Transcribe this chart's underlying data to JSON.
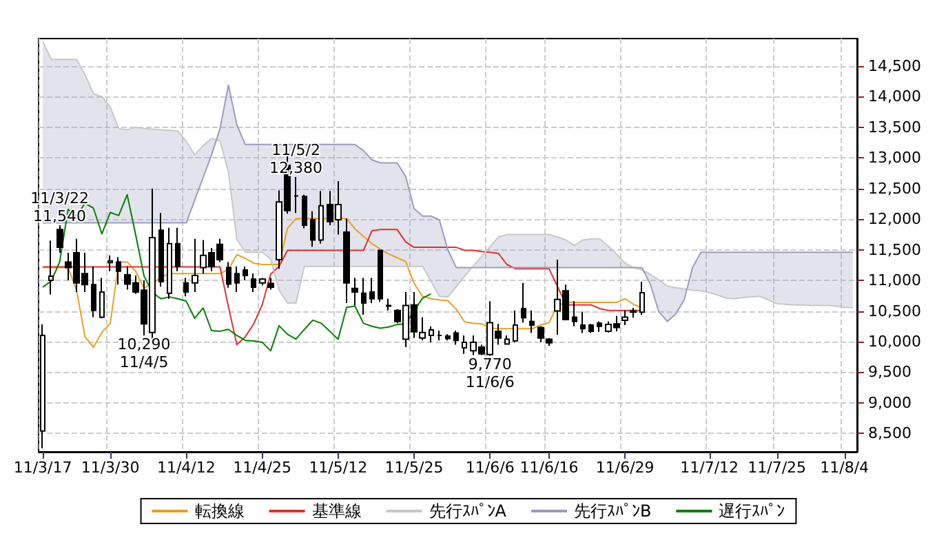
{
  "chart_data": {
    "type": "line",
    "categories": [
      "11/3/17",
      null,
      null,
      null,
      null,
      null,
      null,
      null,
      "11/3/30",
      null,
      null,
      null,
      null,
      null,
      null,
      null,
      null,
      "11/4/12",
      null,
      null,
      null,
      null,
      null,
      null,
      null,
      null,
      "11/4/25",
      null,
      null,
      null,
      null,
      null,
      null,
      null,
      null,
      "11/5/12",
      null,
      null,
      null,
      null,
      null,
      null,
      null,
      null,
      "11/5/25",
      null,
      null,
      null,
      null,
      null,
      null,
      null,
      null,
      "11/6/6",
      null,
      null,
      null,
      null,
      null,
      null,
      "11/6/16",
      null,
      null,
      null,
      null,
      null,
      null,
      null,
      null,
      "11/6/29",
      null,
      null,
      null,
      null,
      null,
      null,
      null,
      null,
      null,
      "11/7/12",
      null,
      null,
      null,
      null,
      null,
      null,
      null,
      "11/7/25",
      null,
      null,
      null,
      null,
      null,
      null,
      null,
      "11/8/4",
      null
    ],
    "series": [
      {
        "type": "candlestick",
        "color": "#000000",
        "ohlc": [
          [
            8540,
            10280,
            8260,
            10100
          ],
          [
            11000,
            11650,
            10770,
            11070
          ],
          [
            11830,
            11900,
            11450,
            11540
          ],
          [
            11300,
            11450,
            11000,
            11210
          ],
          [
            11450,
            11680,
            10810,
            10960
          ],
          [
            11110,
            11450,
            10810,
            10930
          ],
          [
            10930,
            11230,
            10400,
            10510
          ],
          [
            10400,
            11040,
            10380,
            10810
          ],
          [
            11290,
            11410,
            11150,
            11320
          ],
          [
            11300,
            11380,
            10930,
            11150
          ],
          [
            11090,
            11230,
            10850,
            10940
          ],
          [
            10960,
            11080,
            10780,
            10810
          ],
          [
            10840,
            11000,
            10100,
            10290
          ],
          [
            10150,
            12500,
            9950,
            11700
          ],
          [
            11820,
            12100,
            10900,
            10980
          ],
          [
            10790,
            11860,
            10700,
            11600
          ],
          [
            11600,
            11860,
            11150,
            11230
          ],
          [
            10960,
            11040,
            10740,
            10810
          ],
          [
            10960,
            11680,
            10810,
            11080
          ],
          [
            11210,
            11660,
            11110,
            11410
          ],
          [
            11450,
            11530,
            11150,
            11230
          ],
          [
            11590,
            11680,
            11300,
            11340
          ],
          [
            11210,
            11300,
            10880,
            10940
          ],
          [
            11110,
            11230,
            10810,
            10960
          ],
          [
            11170,
            11230,
            11000,
            11080
          ],
          [
            11020,
            11110,
            10810,
            10890
          ],
          [
            10960,
            11040,
            10920,
            11020
          ],
          [
            10950,
            11040,
            10850,
            10890
          ],
          [
            11340,
            12470,
            11190,
            12280
          ],
          [
            12880,
            13160,
            12090,
            12140
          ],
          [
            12380,
            12690,
            12100,
            12380
          ],
          [
            12370,
            12400,
            11850,
            11900
          ],
          [
            11990,
            12130,
            11550,
            11660
          ],
          [
            11660,
            12460,
            11600,
            12220
          ],
          [
            12240,
            12460,
            11900,
            11960
          ],
          [
            11990,
            12620,
            11750,
            12240
          ],
          [
            11790,
            12010,
            10630,
            10960
          ],
          [
            10870,
            11040,
            10590,
            10810
          ],
          [
            10790,
            11040,
            10440,
            10630
          ],
          [
            10810,
            11040,
            10630,
            10700
          ],
          [
            11490,
            11500,
            10650,
            10700
          ],
          [
            10580,
            10700,
            10510,
            10590
          ],
          [
            10510,
            10530,
            10300,
            10330
          ],
          [
            10040,
            10810,
            9910,
            10590
          ],
          [
            10600,
            10810,
            10060,
            10160
          ],
          [
            10060,
            10400,
            10020,
            10150
          ],
          [
            10100,
            10250,
            9990,
            10190
          ],
          [
            10100,
            10180,
            10020,
            10100
          ],
          [
            10090,
            10120,
            10020,
            10050
          ],
          [
            10140,
            10180,
            9950,
            10020
          ],
          [
            9900,
            10100,
            9800,
            9990
          ],
          [
            9850,
            10100,
            9780,
            9990
          ],
          [
            9910,
            9950,
            9780,
            9800
          ],
          [
            9790,
            10660,
            9770,
            10310
          ],
          [
            10170,
            10290,
            9950,
            10060
          ],
          [
            9960,
            10100,
            9950,
            10040
          ],
          [
            10010,
            10510,
            9990,
            10270
          ],
          [
            10540,
            10960,
            10310,
            10390
          ],
          [
            10330,
            10510,
            10140,
            10270
          ],
          [
            10230,
            10250,
            9990,
            10060
          ],
          [
            10040,
            10060,
            9930,
            9980
          ],
          [
            10500,
            11340,
            10110,
            10690
          ],
          [
            10830,
            10930,
            10350,
            10360
          ],
          [
            10400,
            10660,
            10250,
            10330
          ],
          [
            10270,
            10490,
            10140,
            10210
          ],
          [
            10270,
            10290,
            10140,
            10170
          ],
          [
            10300,
            10330,
            10160,
            10250
          ],
          [
            10170,
            10330,
            10150,
            10280
          ],
          [
            10290,
            10420,
            10170,
            10230
          ],
          [
            10350,
            10510,
            10270,
            10400
          ],
          [
            10500,
            10550,
            10390,
            10480
          ],
          [
            10480,
            10980,
            10440,
            10800
          ],
          null,
          null,
          null,
          null,
          null,
          null,
          null,
          null,
          null,
          null,
          null,
          null,
          null,
          null,
          null,
          null,
          null,
          null,
          null,
          null,
          null,
          null,
          null,
          null,
          null
        ]
      },
      {
        "name": "転換線",
        "color": "#e8a020",
        "values": [
          11210,
          11210,
          11210,
          11210,
          10840,
          10080,
          9910,
          10150,
          10300,
          11300,
          11300,
          11150,
          10870,
          10950,
          11050,
          11110,
          11110,
          11110,
          11110,
          11110,
          11110,
          11110,
          11180,
          11420,
          11360,
          11280,
          11260,
          11260,
          11260,
          11850,
          12010,
          12010,
          12010,
          12010,
          12010,
          12010,
          12010,
          11840,
          11720,
          11600,
          11510,
          11430,
          11370,
          11310,
          10950,
          10740,
          10700,
          10680,
          10670,
          10530,
          10320,
          10300,
          10290,
          10220,
          10210,
          10210,
          10210,
          10210,
          10210,
          10270,
          10310,
          10590,
          10640,
          10640,
          10640,
          10640,
          10640,
          10640,
          10640,
          10700,
          10610,
          10550,
          null,
          null,
          null,
          null,
          null,
          null,
          null,
          null,
          null,
          null,
          null,
          null,
          null,
          null,
          null,
          null,
          null,
          null,
          null,
          null,
          null,
          null,
          null,
          null,
          null
        ]
      },
      {
        "name": "基準線",
        "color": "#e03030",
        "values": [
          11220,
          11220,
          11220,
          11220,
          11220,
          11220,
          11220,
          11220,
          11220,
          11220,
          11220,
          11220,
          11220,
          11220,
          11220,
          11220,
          11220,
          11220,
          11220,
          11220,
          11220,
          11220,
          10570,
          9950,
          10080,
          10290,
          10600,
          11100,
          11230,
          11490,
          11490,
          11490,
          11490,
          11490,
          11490,
          11490,
          11490,
          11490,
          11490,
          11810,
          11830,
          11830,
          11830,
          11630,
          11540,
          11540,
          11540,
          11540,
          11540,
          11540,
          11490,
          11490,
          11470,
          11460,
          11440,
          11260,
          11190,
          11190,
          11190,
          11190,
          11190,
          10900,
          10600,
          10600,
          10600,
          10600,
          10540,
          10510,
          10510,
          10510,
          10510,
          10510,
          null,
          null,
          null,
          null,
          null,
          null,
          null,
          null,
          null,
          null,
          null,
          null,
          null,
          null,
          null,
          null,
          null,
          null,
          null,
          null,
          null,
          null,
          null,
          null,
          null
        ]
      },
      {
        "name": "先行ｽﾊﾟﾝA",
        "color": "#c8c8c8",
        "values": [
          14900,
          14610,
          14610,
          14610,
          14610,
          14360,
          14050,
          14000,
          13830,
          13480,
          13460,
          13500,
          13480,
          13470,
          13460,
          13450,
          13440,
          13270,
          13050,
          13200,
          13320,
          13280,
          12770,
          11670,
          11460,
          11460,
          11460,
          11350,
          10840,
          10630,
          10630,
          11230,
          11230,
          11230,
          11230,
          11230,
          11230,
          11230,
          11230,
          11230,
          11230,
          11230,
          11230,
          11230,
          11230,
          11230,
          10990,
          10740,
          10730,
          10900,
          11070,
          11230,
          11390,
          11550,
          11710,
          11750,
          11750,
          11750,
          11750,
          11750,
          11750,
          11710,
          11660,
          11570,
          11660,
          11680,
          11680,
          11560,
          11430,
          11280,
          11210,
          11170,
          11100,
          11010,
          10910,
          10880,
          10860,
          10840,
          10830,
          10800,
          10760,
          10710,
          10700,
          10720,
          10730,
          10740,
          10680,
          10620,
          10610,
          10600,
          10600,
          10590,
          10590,
          10590,
          10580,
          10560,
          10550
        ]
      },
      {
        "name": "先行ｽﾊﾟﾝB",
        "color": "#9c9cc0",
        "lower": [
          14900,
          14610,
          14610,
          14610,
          14610,
          14360,
          14050,
          14000,
          13830,
          13480,
          13460,
          13500,
          13480,
          13470,
          13460,
          13450,
          13440,
          13270,
          13050,
          13200,
          13320,
          13280,
          12770,
          11670,
          11460,
          11460,
          11460,
          11350,
          10840,
          10630,
          10630,
          11230,
          11230,
          11230,
          11230,
          11230,
          11230,
          11230,
          11230,
          11230,
          11230,
          11230,
          11230,
          11230,
          11230,
          11230,
          10990,
          10740,
          10730,
          10900,
          11070,
          11230,
          11390,
          11550,
          11710,
          11750,
          11750,
          11750,
          11750,
          11750,
          11750,
          11710,
          11660,
          11570,
          11660,
          11680,
          11680,
          11560,
          11430,
          11280,
          11210,
          11170,
          11100,
          11010,
          10910,
          10880,
          10860,
          10840,
          10830,
          10800,
          10760,
          10710,
          10700,
          10720,
          10730,
          10740,
          10680,
          10620,
          10610,
          10600,
          10600,
          10590,
          10590,
          10590,
          10580,
          10560,
          10550
        ],
        "upper": [
          11940,
          11940,
          11940,
          11940,
          11940,
          11940,
          11940,
          11940,
          11940,
          11940,
          11940,
          11940,
          11940,
          11940,
          11940,
          11940,
          11940,
          11940,
          12310,
          12680,
          13050,
          13480,
          14190,
          13540,
          13220,
          13220,
          13220,
          13220,
          13220,
          13220,
          13220,
          13220,
          13220,
          13220,
          13220,
          13220,
          13220,
          13220,
          13120,
          12970,
          12920,
          12920,
          12920,
          12700,
          12170,
          12050,
          12050,
          11990,
          11500,
          11210,
          11210,
          11210,
          11210,
          11210,
          11210,
          11210,
          11210,
          11210,
          11210,
          11210,
          11210,
          11210,
          11210,
          11210,
          11210,
          11210,
          11210,
          11210,
          11210,
          11210,
          11210,
          11210,
          10940,
          10490,
          10330,
          10450,
          10680,
          11210,
          11460,
          11460,
          11460,
          11460,
          11460,
          11460,
          11460,
          11460,
          11460,
          11460,
          11460,
          11460,
          11460,
          11460,
          11460,
          11460,
          11460,
          11460,
          11460
        ],
        "values": [
          11940,
          11940,
          11940,
          11940,
          11940,
          11940,
          11940,
          11940,
          11940,
          11940,
          11940,
          11940,
          11940,
          11940,
          11940,
          11940,
          11940,
          11940,
          12310,
          12680,
          13050,
          13480,
          14190,
          13540,
          13220,
          13220,
          13220,
          13220,
          13220,
          13220,
          13220,
          13220,
          13220,
          13220,
          13220,
          13220,
          13220,
          13220,
          13120,
          12970,
          12920,
          12920,
          12920,
          12700,
          12170,
          12050,
          12050,
          11990,
          11500,
          11210,
          11210,
          11210,
          11210,
          11210,
          11210,
          11210,
          11210,
          11210,
          11210,
          11210,
          11210,
          11210,
          11210,
          11210,
          11210,
          11210,
          11210,
          11210,
          11210,
          11210,
          11210,
          11210,
          10940,
          10490,
          10330,
          10450,
          10680,
          11210,
          11460,
          11460,
          11460,
          11460,
          11460,
          11460,
          11460,
          11460,
          11460,
          11460,
          11460,
          11460,
          11460,
          11460,
          11460,
          11460,
          11460,
          11460,
          11460
        ]
      },
      {
        "name": "遅行ｽﾊﾟﾝ",
        "color": "#008000",
        "values": [
          10890,
          10990,
          11300,
          12160,
          12050,
          12260,
          12180,
          11760,
          12110,
          12060,
          12400,
          11750,
          11070,
          10800,
          10700,
          10730,
          10700,
          10660,
          10380,
          10550,
          10180,
          10170,
          10200,
          10100,
          10020,
          10010,
          9990,
          9850,
          10260,
          10120,
          10040,
          10200,
          10350,
          10300,
          10170,
          10040,
          10560,
          10580,
          10300,
          10250,
          10220,
          10240,
          10280,
          10290,
          10500,
          10710,
          10780,
          null,
          null,
          null,
          null,
          null,
          null,
          null,
          null,
          null,
          null,
          null,
          null,
          null,
          null,
          null,
          null,
          null,
          null,
          null,
          null,
          null,
          null,
          null,
          null,
          null,
          null,
          null,
          null,
          null,
          null,
          null,
          null,
          null,
          null,
          null,
          null,
          null,
          null,
          null,
          null,
          null,
          null,
          null,
          null,
          null,
          null,
          null,
          null,
          null,
          null
        ]
      }
    ],
    "annotations": [
      {
        "text": "11/3/22",
        "y": 11540
      },
      {
        "text": "11,540",
        "y": 11540
      },
      {
        "text": "10,290",
        "y": 10290
      },
      {
        "text": "11/4/5",
        "y": 10290
      },
      {
        "text": "11/5/2",
        "y": 12380
      },
      {
        "text": "12,380",
        "y": 12380
      },
      {
        "text": "9,770",
        "y": 9770
      },
      {
        "text": "11/6/6",
        "y": 9770
      }
    ],
    "ylim": [
      8200,
      14950
    ],
    "yticks": [
      {
        "value": 8500,
        "label": "8,500"
      },
      {
        "value": 9000,
        "label": "9,000"
      },
      {
        "value": 9500,
        "label": "9,500"
      },
      {
        "value": 10000,
        "label": "10,000"
      },
      {
        "value": 10500,
        "label": "10,500"
      },
      {
        "value": 11000,
        "label": "11,000"
      },
      {
        "value": 11500,
        "label": "11,500"
      },
      {
        "value": 12000,
        "label": "12,000"
      },
      {
        "value": 12500,
        "label": "12,500"
      },
      {
        "value": 13000,
        "label": "13,000"
      },
      {
        "value": 13500,
        "label": "13,500"
      },
      {
        "value": 14000,
        "label": "14,000"
      },
      {
        "value": 14500,
        "label": "14,500"
      }
    ],
    "grid": true,
    "legend": "bottom",
    "marker": "none",
    "line_style": "solid"
  }
}
